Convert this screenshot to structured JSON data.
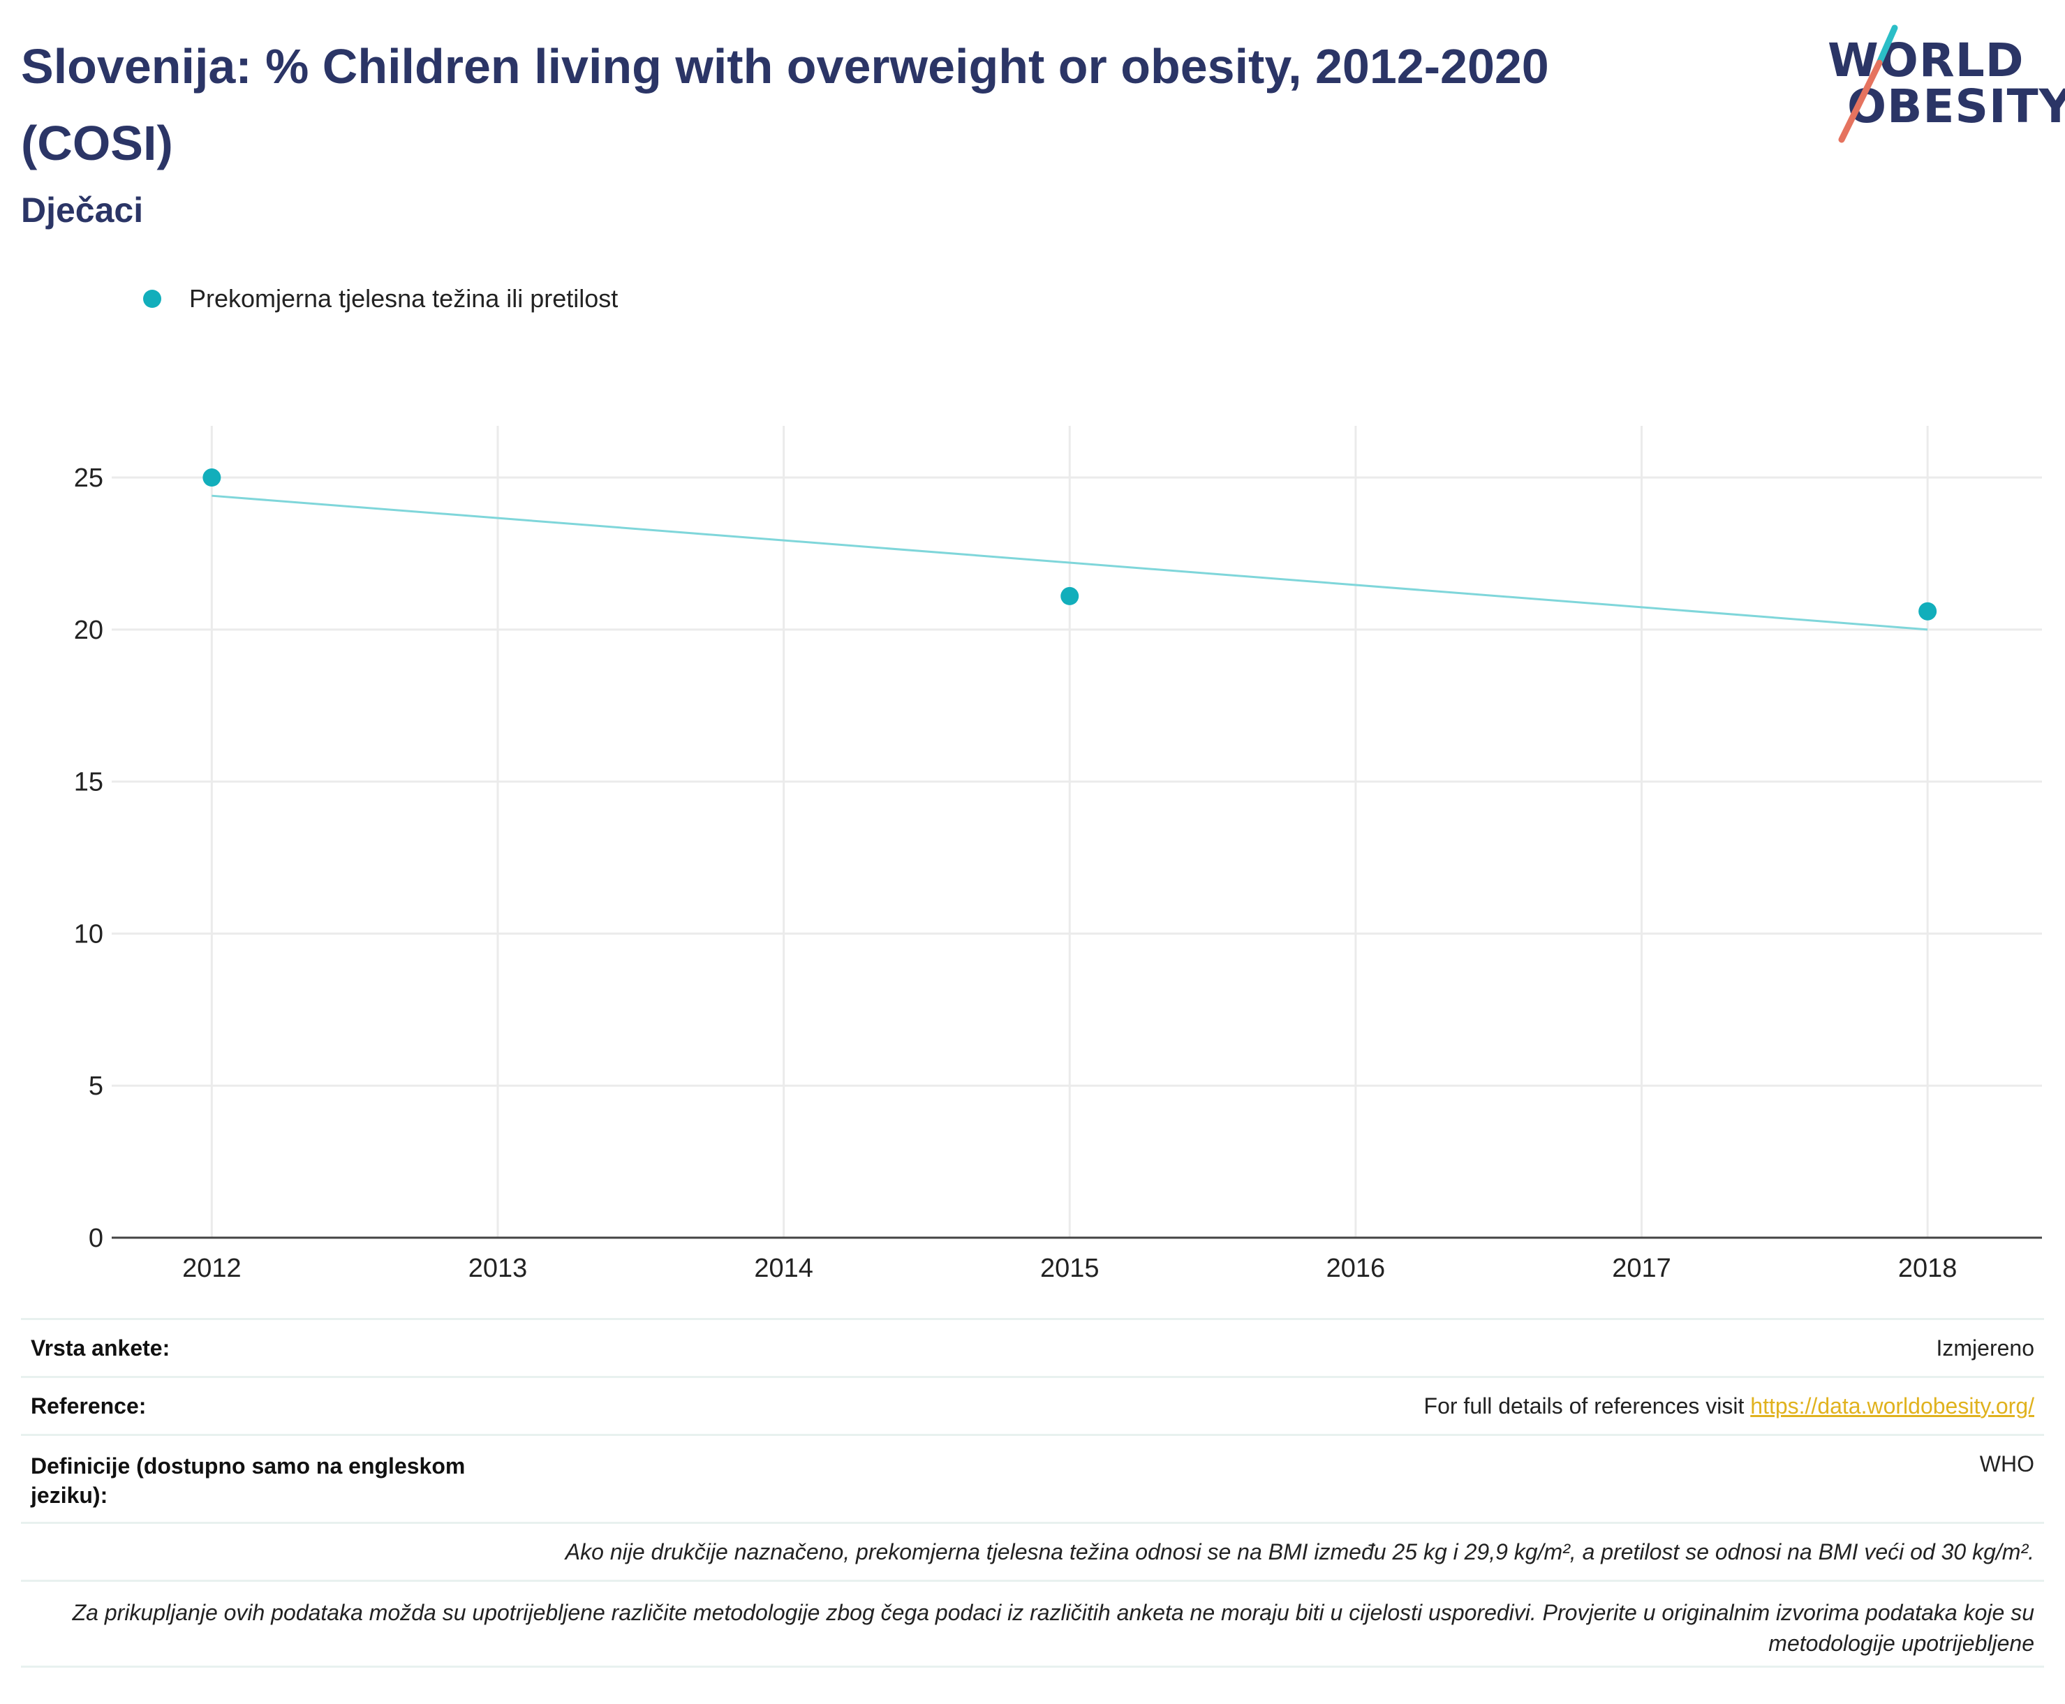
{
  "header": {
    "title": "Slovenija: % Children living with overweight or obesity, 2012-2020 (COSI)",
    "subtitle": "Dječaci"
  },
  "logo": {
    "line1": "WORLD",
    "line2": "OBESITY",
    "accent_teal": "#2bbec7",
    "accent_coral": "#e5735f"
  },
  "legend": {
    "label": "Prekomjerna tjelesna težina ili pretilost",
    "color": "#12aebb"
  },
  "chart_data": {
    "type": "scatter",
    "x": [
      2012,
      2015,
      2018
    ],
    "series": [
      {
        "name": "Prekomjerna tjelesna težina ili pretilost",
        "values": [
          25.0,
          21.1,
          20.6
        ],
        "color": "#12aebb"
      }
    ],
    "trendline": {
      "x": [
        2012,
        2018
      ],
      "y": [
        24.4,
        20.0
      ],
      "color": "#7fd6da"
    },
    "x_ticks": [
      "2012",
      "2013",
      "2014",
      "2015",
      "2016",
      "2017",
      "2018"
    ],
    "y_ticks": [
      "0",
      "5",
      "10",
      "15",
      "20",
      "25"
    ],
    "xlim": [
      2011.65,
      2018.4
    ],
    "ylim": [
      0,
      26.7
    ],
    "grid": true
  },
  "info": {
    "survey_type_label": "Vrsta ankete:",
    "survey_type_value": "Izmjereno",
    "references_label": "Reference:",
    "references_text": "For full details of references visit ",
    "references_link": "https://data.worldobesity.org/",
    "definitions_label": "Definicije (dostupno samo na engleskom jeziku):",
    "definitions_value": "WHO",
    "note1": "Ako nije drukčije naznačeno, prekomjerna tjelesna težina odnosi se na BMI između 25 kg i 29,9 kg/m², a pretilost se odnosi na BMI veći od 30 kg/m².",
    "note2": "Za prikupljanje ovih podataka možda su upotrijebljene različite metodologije zbog čega podaci iz različitih anketa ne moraju biti u cijelosti usporedivi. Provjerite u originalnim izvorima podataka koje su metodologije upotrijebljene"
  }
}
